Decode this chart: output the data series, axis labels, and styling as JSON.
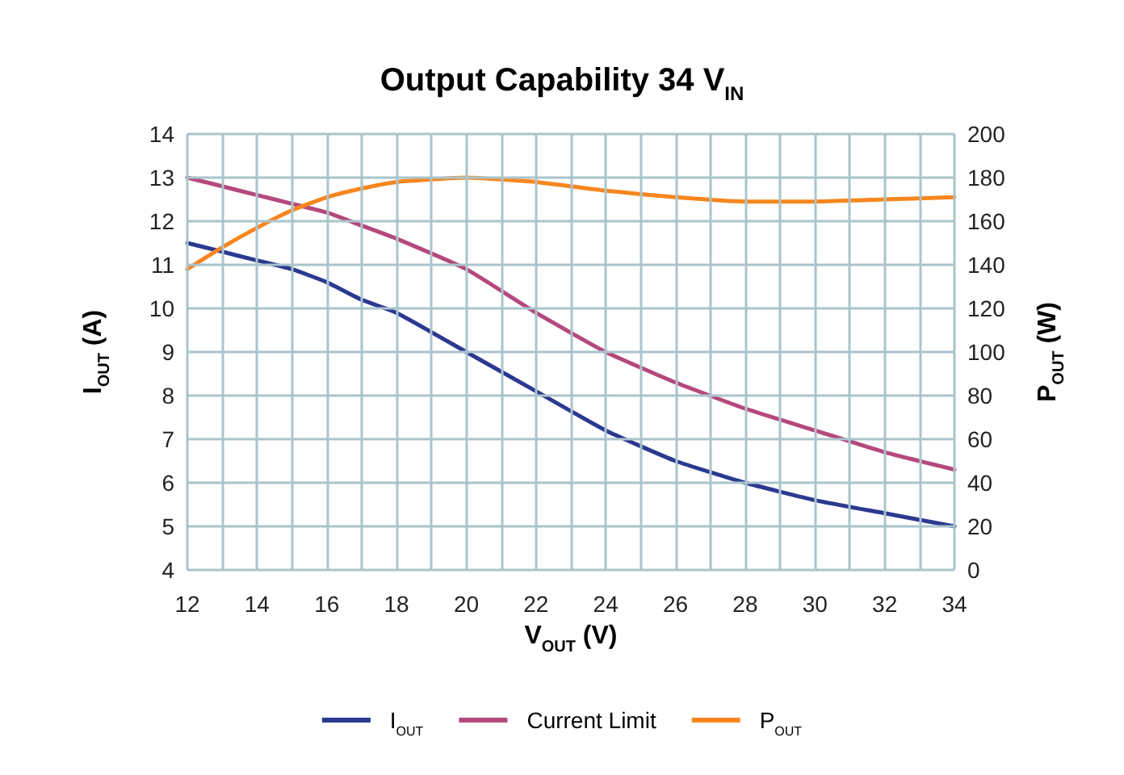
{
  "chart_data": {
    "type": "line",
    "title": "Output Capability 34 V$_{IN}$",
    "xlabel": "V$_{OUT}$ (V)",
    "ylabel": "I$_{OUT}$ (A)",
    "y2label": "P$_{OUT}$ (W)",
    "x": [
      12,
      13,
      14,
      15,
      16,
      17,
      18,
      20,
      22,
      24,
      26,
      28,
      30,
      32,
      34
    ],
    "series": [
      {
        "name": "I$_{OUT}$",
        "color": "#2b3990",
        "values": [
          11.5,
          11.3,
          11.1,
          10.9,
          10.6,
          10.2,
          9.9,
          9.0,
          8.1,
          7.2,
          6.5,
          6.0,
          5.6,
          5.3,
          5.0
        ]
      },
      {
        "name": "Current Limit",
        "color": "#b5487c",
        "values": [
          13.0,
          12.8,
          12.6,
          12.4,
          12.2,
          11.9,
          11.6,
          10.9,
          9.9,
          9.0,
          8.3,
          7.7,
          7.2,
          6.7,
          6.3
        ]
      },
      {
        "name": "P$_{OUT}$",
        "color": "#f7861e",
        "axis": "y2",
        "values": [
          138,
          148,
          157,
          165,
          171,
          175,
          178,
          180,
          178,
          174,
          171,
          169,
          169,
          170,
          171
        ]
      }
    ],
    "xlim": [
      12,
      34
    ],
    "xticks": [
      12,
      {
        "value": 13,
        "label": null
      },
      14,
      {
        "value": 15,
        "label": null
      },
      16,
      {
        "value": 17,
        "label": null
      },
      18,
      {
        "value": 19,
        "label": null
      },
      20,
      {
        "value": 21,
        "label": null
      },
      22,
      {
        "value": 23,
        "label": null
      },
      24,
      {
        "value": 25,
        "label": null
      },
      26,
      {
        "value": 27,
        "label": null
      },
      28,
      {
        "value": 29,
        "label": null
      },
      30,
      {
        "value": 31,
        "label": null
      },
      32,
      {
        "value": 33,
        "label": null
      },
      34
    ],
    "ylim": [
      4,
      14
    ],
    "yticks": [
      4,
      5,
      6,
      7,
      8,
      9,
      10,
      11,
      12,
      13,
      14
    ],
    "y2lim": [
      0,
      200
    ],
    "y2ticks": [
      0,
      20,
      40,
      60,
      80,
      100,
      120,
      140,
      160,
      180,
      200
    ],
    "grid": true,
    "legend": "bottom",
    "marker": "none",
    "line_style": "solid"
  }
}
